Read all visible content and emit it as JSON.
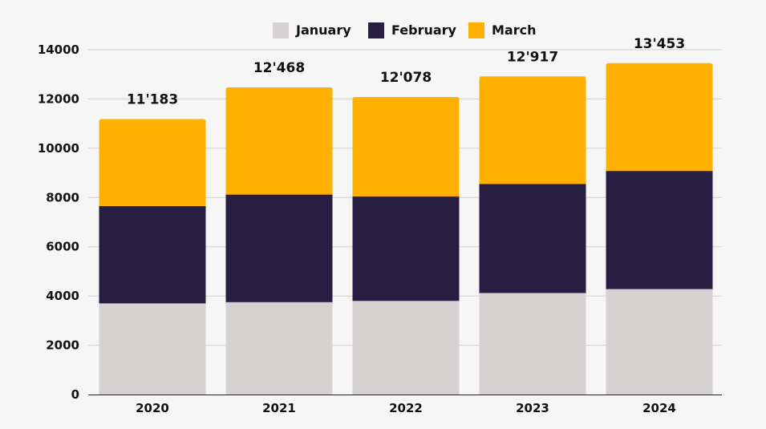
{
  "chart_data": {
    "type": "bar",
    "stacked": true,
    "categories": [
      "2020",
      "2021",
      "2022",
      "2023",
      "2024"
    ],
    "series": [
      {
        "name": "January",
        "color": "#d6d2d1",
        "values": [
          3700,
          3750,
          3800,
          4120,
          4280
        ]
      },
      {
        "name": "February",
        "color": "#271e42",
        "values": [
          3950,
          4370,
          4240,
          4430,
          4800
        ]
      },
      {
        "name": "March",
        "color": "#ffb000",
        "values": [
          3533,
          4348,
          4038,
          4367,
          4373
        ]
      }
    ],
    "totals": [
      "11'183",
      "12'468",
      "12'078",
      "12'917",
      "13'453"
    ],
    "y_ticks": [
      "0",
      "2000",
      "4000",
      "6000",
      "8000",
      "10000",
      "12000",
      "14000"
    ],
    "ylim": [
      0,
      14000
    ],
    "grid": true,
    "legend_position": "top-center",
    "title": "",
    "xlabel": "",
    "ylabel": ""
  }
}
